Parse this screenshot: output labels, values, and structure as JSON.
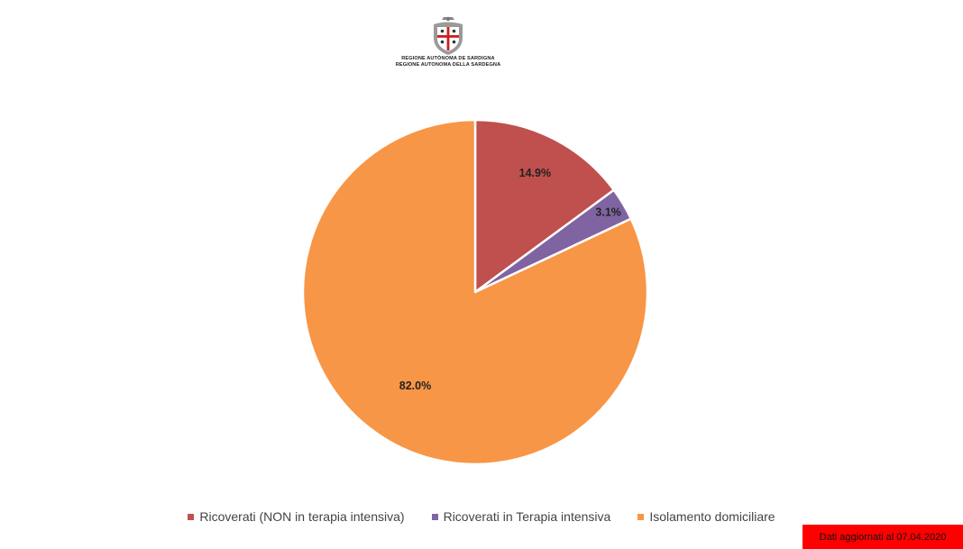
{
  "logo": {
    "line1": "REGIONE AUTÒNOMA DE SARDIGNA",
    "line2": "REGIONE AUTONOMA DELLA SARDEGNA"
  },
  "chart_data": {
    "type": "pie",
    "title": "",
    "categories": [
      "Ricoverati (NON in terapia intensiva)",
      "Ricoverati in Terapia intensiva",
      "Isolamento domiciliare"
    ],
    "values": [
      14.9,
      3.1,
      82.0
    ],
    "labels": [
      "14.9%",
      "3.1%",
      "82.0%"
    ],
    "colors": [
      "#c0504d",
      "#8064a2",
      "#f79646"
    ],
    "legend_position": "bottom",
    "start_angle": "12 o'clock",
    "direction": "clockwise"
  },
  "footer": {
    "badge_text": "Dati aggiornati al 07.04.2020",
    "badge_color": "#ff0000"
  }
}
